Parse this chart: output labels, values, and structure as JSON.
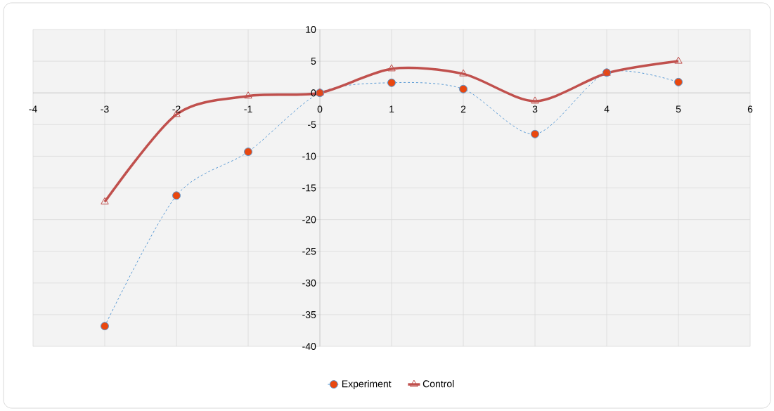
{
  "chart_data": {
    "type": "line",
    "xlim": [
      -4,
      6
    ],
    "ylim": [
      -40,
      10
    ],
    "xticks": [
      -4,
      -3,
      -2,
      -1,
      0,
      1,
      2,
      3,
      4,
      5,
      6
    ],
    "yticks": [
      -40,
      -35,
      -30,
      -25,
      -20,
      -15,
      -10,
      -5,
      0,
      5,
      10
    ],
    "x": [
      -3,
      -2,
      -1,
      0,
      1,
      2,
      3,
      4,
      5
    ],
    "series": [
      {
        "name": "Experiment",
        "color": "#5b9bd5",
        "marker": "circle",
        "line_style": "dashed",
        "values": [
          -36.8,
          -16.2,
          -9.3,
          0,
          1.6,
          0.6,
          -6.5,
          3.2,
          1.7
        ]
      },
      {
        "name": "Control",
        "color": "#c0504d",
        "marker": "triangle",
        "line_style": "solid",
        "values": [
          -17.2,
          -3.4,
          -0.5,
          0,
          3.8,
          3.0,
          -1.3,
          3.1,
          5.0
        ]
      }
    ],
    "grid": true,
    "legend": "bottom"
  }
}
